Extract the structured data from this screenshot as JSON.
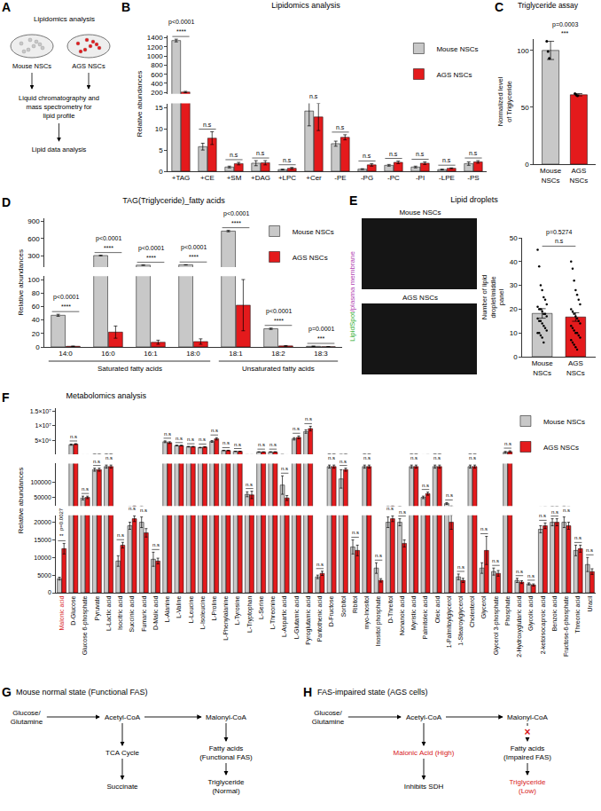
{
  "diagram_A": {
    "panel": "A",
    "title": "Lipidomics analysis",
    "samples": [
      "Mouse NSCs",
      "AGS NSCs"
    ],
    "sample_colors": [
      "#c8c8c8",
      "#e41a1c"
    ],
    "steps": [
      "Liquid chromatography and mass spectrometry for lipid profile",
      "Lipid data analysis"
    ]
  },
  "chart_data": [
    {
      "panel": "B",
      "type": "bar",
      "title": "Lipidomics analysis",
      "y_title": "Relative abundances",
      "legend": "top right",
      "categories": [
        "+TAG",
        "+CE",
        "+SM",
        "+DAG",
        "+LPC",
        "+Cer",
        "-PE",
        "-PG",
        "-PC",
        "-PI",
        "-LPE",
        "-PS"
      ],
      "series": [
        {
          "name": "Mouse NSCs",
          "color": "#c8c8c8",
          "values": [
            1340,
            5.8,
            1.0,
            1.9,
            0.4,
            14.2,
            6.5,
            0.5,
            1.4,
            1.0,
            0.4,
            1.8
          ],
          "errors": [
            30,
            0.8,
            0.2,
            0.6,
            0.1,
            3.5,
            0.6,
            0.1,
            0.2,
            0.2,
            0.1,
            0.4
          ]
        },
        {
          "name": "AGS NSCs",
          "color": "#e41a1c",
          "values": [
            210,
            7.8,
            1.8,
            2.0,
            0.7,
            12.8,
            8.0,
            1.5,
            2.1,
            1.9,
            0.7,
            2.2
          ],
          "errors": [
            15,
            1.5,
            0.3,
            0.5,
            0.2,
            3.2,
            0.6,
            0.3,
            0.3,
            0.3,
            0.1,
            0.3
          ]
        }
      ],
      "y_segments": [
        {
          "lim": [
            0,
            16
          ],
          "ticks": [
            0,
            5,
            10,
            15
          ]
        },
        {
          "lim": [
            170,
            1450
          ],
          "ticks": [
            200,
            400,
            600,
            800,
            1000,
            1200,
            1400
          ]
        }
      ],
      "significance": [
        "****",
        "n.s",
        "n.s",
        "n.s",
        "n.s",
        "n.s",
        "n.s",
        "n.s",
        "n.s",
        "n.s",
        "n.s",
        "n.s"
      ],
      "p_values": [
        "p<0.0001",
        null,
        null,
        null,
        null,
        null,
        null,
        null,
        null,
        null,
        null,
        null
      ]
    },
    {
      "panel": "C",
      "type": "bar",
      "title": "Triglyceride assay",
      "y_title": "Normalized level of Triglyceride",
      "categories": [
        "Mouse NSCs",
        "AGS NSCs"
      ],
      "values": [
        100,
        61
      ],
      "errors": [
        8,
        1
      ],
      "points": [
        [
          108,
          99,
          93
        ],
        [
          62,
          61,
          60
        ]
      ],
      "colors": [
        "#c8c8c8",
        "#e41a1c"
      ],
      "ylim": [
        0,
        110
      ],
      "yticks": [
        0,
        50,
        100
      ],
      "significance": "***",
      "p_value": "p=0.0003"
    },
    {
      "panel": "D",
      "type": "bar",
      "title": "TAG(Triglyceride)_fatty acids",
      "y_title": "Relative abundances",
      "legend": "top right",
      "categories": [
        "14:0",
        "16:0",
        "16:1",
        "18:0",
        "18:1",
        "18:2",
        "18:3"
      ],
      "series": [
        {
          "name": "Mouse NSCs",
          "color": "#c8c8c8",
          "values": [
            47,
            310,
            145,
            150,
            730,
            27,
            1.0
          ],
          "errors": [
            1.5,
            5,
            3,
            3,
            12,
            1,
            0.3
          ]
        },
        {
          "name": "AGS NSCs",
          "color": "#e41a1c",
          "values": [
            1.0,
            22,
            7,
            8,
            62,
            1.5,
            0.3
          ],
          "errors": [
            0.3,
            9,
            3,
            4,
            38,
            0.5,
            0.1
          ]
        }
      ],
      "y_segments": [
        {
          "lim": [
            0,
            105
          ],
          "ticks": [
            0,
            20,
            40,
            60,
            80,
            100
          ]
        },
        {
          "lim": [
            110,
            950
          ],
          "ticks": [
            300,
            600,
            900
          ]
        }
      ],
      "category_groups": [
        {
          "label": "Saturated fatty acids",
          "categories": [
            "14:0",
            "16:0",
            "16:1",
            "18:0"
          ]
        },
        {
          "label": "Unsaturated fatty acids",
          "categories": [
            "18:1",
            "18:2",
            "18:3"
          ]
        }
      ],
      "significance": [
        "****",
        "****",
        "****",
        "****",
        "****",
        "****",
        "***"
      ],
      "p_values": [
        "p<0.0001",
        "p<0.0001",
        "p<0.0001",
        "p<0.0001",
        "p<0.0001",
        "p<0.0001",
        "p=0.0001"
      ]
    },
    {
      "panel": "E",
      "type": "bar",
      "title": "Lipid droplets",
      "y_title": "Number of lipid droplet/middle panel",
      "image_labels": [
        "Mouse NSCs",
        "AGS NSCs"
      ],
      "stain_label": [
        {
          "text": "LipidSpot",
          "color": "#2fae2f"
        },
        {
          "text": "/plasma membrane",
          "color": "#b03cb0"
        }
      ],
      "categories": [
        "Mouse NSCs",
        "AGS NSCs"
      ],
      "values": [
        18.2,
        16.7
      ],
      "errors": [
        2,
        1.8
      ],
      "points": [
        [
          45,
          38,
          30,
          28,
          25,
          24,
          22,
          21,
          20,
          20,
          19,
          18,
          18,
          17,
          16,
          15,
          15,
          14,
          13,
          12,
          11,
          10,
          10,
          9,
          8,
          6
        ],
        [
          40,
          37,
          32,
          28,
          26,
          24,
          22,
          20,
          19,
          18,
          17,
          16,
          15,
          14,
          13,
          12,
          11,
          10,
          10,
          9,
          8,
          7,
          6,
          5,
          4,
          3
        ]
      ],
      "colors": [
        "#c8c8c8",
        "#e41a1c"
      ],
      "ylim": [
        0,
        50
      ],
      "yticks": [
        0,
        10,
        20,
        30,
        40,
        50
      ],
      "significance": "n.s",
      "p_value": "p=0.5274"
    },
    {
      "panel": "F",
      "type": "bar",
      "title": "Metabolomics analysis",
      "y_title": "Relative abundances",
      "legend": "top right",
      "highlight": {
        "categories": [
          "Malonic acid"
        ],
        "color": "#d7191c"
      },
      "categories": [
        "Malonic acid",
        "D-Glucose",
        "Glucose 6-phosphate",
        "Pyruvate",
        "L-Lactic acid",
        "Isocitric acid",
        "Succinic acid",
        "Fumaric acid",
        "D-Malic acid",
        "L-Alanine",
        "L-Valine",
        "L-Leucine",
        "L-Isoleucine",
        "L-Proline",
        "L-Phenylalanine",
        "L-Tyrosine",
        "L-Tryptophan",
        "L-Serine",
        "L-Threonine",
        "L-Aspartic acid",
        "L-Glutamic acid",
        "Pyroglutamic acid",
        "Pantothenic acid",
        "D-Fructose",
        "Sorbitol",
        "Ribitol",
        "myo-Inositol",
        "Inositol phosphate",
        "D-Threitol",
        "Nonanoic acid",
        "Myristic acid",
        "Palmitoleic acid",
        "Oleic acid",
        "1-Palmitoylglycerol",
        "1-Stearoylglycerol",
        "Cholesterol",
        "Glycerol",
        "Glycerol 3-phosphate",
        "Phosphate",
        "2-Hydroxyglutaric acid",
        "Glycolic acid",
        "2-ketoisocaproic acid",
        "Benzoic acid",
        "Fructose-6-phosphate",
        "Threonic acid",
        "Uracil"
      ],
      "series": [
        {
          "name": "Mouse NSCs",
          "color": "#c8c8c8",
          "values": [
            4000,
            3500000,
            48000,
            140000,
            150000,
            9000,
            19000,
            20000,
            9500,
            4500000,
            3200000,
            2800000,
            2500000,
            4600000,
            1500000,
            1200000,
            60000,
            1000000,
            1000000,
            90000,
            5500000,
            8000000,
            4500,
            150000,
            110000,
            13000,
            150000,
            7000,
            20000,
            20000,
            150000,
            50000,
            150000,
            30000,
            4500,
            150000,
            7000,
            6000,
            900000,
            3500,
            2500,
            18000,
            20000,
            20000,
            12000,
            8000
          ],
          "errors": [
            400,
            200000,
            6000,
            5000,
            5000,
            1500,
            1000,
            1500,
            2000,
            300000,
            100000,
            100000,
            100000,
            300000,
            80000,
            60000,
            8000,
            60000,
            60000,
            30000,
            400000,
            600000,
            500,
            5000,
            30000,
            2000,
            5000,
            1500,
            1500,
            1000,
            5000,
            4000,
            5000,
            3000,
            800,
            5000,
            1500,
            1000,
            300000,
            600,
            300,
            1000,
            1000,
            1500,
            1500,
            2000
          ]
        },
        {
          "name": "AGS NSCs",
          "color": "#e41a1c",
          "values": [
            12500,
            3700000,
            50000,
            140000,
            150000,
            13500,
            21000,
            17000,
            9000,
            4200000,
            3200000,
            2800000,
            2700000,
            5500000,
            1500000,
            1200000,
            58000,
            1000000,
            1000000,
            48000,
            6000000,
            9000000,
            5500,
            150000,
            140000,
            12000,
            150000,
            3500,
            21000,
            14000,
            150000,
            62000,
            150000,
            20000,
            3500,
            150000,
            12000,
            5500,
            1100000,
            3000,
            2200,
            19000,
            20000,
            19000,
            12500,
            6000
          ],
          "errors": [
            1500,
            150000,
            4000,
            5000,
            5000,
            800,
            800,
            1200,
            800,
            300000,
            100000,
            100000,
            100000,
            400000,
            80000,
            60000,
            12000,
            50000,
            60000,
            8000,
            500000,
            800000,
            600,
            5000,
            5000,
            1500,
            5000,
            500,
            800,
            1000,
            5000,
            5000,
            5000,
            2000,
            600,
            5000,
            4000,
            800,
            300000,
            400,
            300,
            800,
            1000,
            1000,
            1000,
            800
          ]
        }
      ],
      "y_segments": [
        {
          "lim": [
            0,
            22000
          ],
          "ticks": [
            0,
            5000,
            10000,
            15000,
            20000
          ]
        },
        {
          "lim": [
            22000,
            160000
          ],
          "ticks": [
            50000,
            100000
          ]
        },
        {
          "lim": [
            200000,
            16000000
          ],
          "ticks": [
            {
              "value": 5000000,
              "label": "5×10⁶"
            },
            {
              "value": 10000000,
              "label": "1×10⁷"
            },
            {
              "value": 15000000,
              "label": "1.5×10⁷"
            }
          ]
        }
      ],
      "significance": [
        "**",
        "n.s",
        "n.s",
        "n.s",
        "n.s",
        "n.s",
        "n.s",
        "n.s",
        "n.s",
        "n.s",
        "n.s",
        "n.s",
        "n.s",
        "n.s",
        "n.s",
        "n.s",
        "n.s",
        "n.s",
        "n.s",
        "n.s",
        "n.s",
        "n.s",
        "n.s",
        "n.s",
        "n.s",
        "n.s",
        "n.s",
        "n.s",
        "n.s",
        "n.s",
        "n.s",
        "n.s",
        "n.s",
        "n.s",
        "n.s",
        "n.s",
        "n.s",
        "n.s",
        "n.s",
        "n.s",
        "n.s",
        "n.s",
        "n.s",
        "n.s",
        "n.s",
        "n.s"
      ],
      "p_values": [
        "p=0.0027",
        null,
        null,
        null,
        null,
        null,
        null,
        null,
        null,
        null,
        null,
        null,
        null,
        null,
        null,
        null,
        null,
        null,
        null,
        null,
        null,
        null,
        null,
        null,
        null,
        null,
        null,
        null,
        null,
        null,
        null,
        null,
        null,
        null,
        null,
        null,
        null,
        null,
        null,
        null,
        null,
        null,
        null,
        null,
        null,
        null
      ]
    }
  ],
  "diagram_G": {
    "panel": "G",
    "title": "Mouse normal state (Functional FAS)",
    "nodes": [
      {
        "lines": [
          "Glucose/",
          "Glutamine"
        ]
      },
      {
        "lines": [
          "Acetyl-CoA"
        ]
      },
      {
        "lines": [
          "Malonyl-CoA"
        ]
      },
      {
        "lines": [
          "TCA Cycle"
        ]
      },
      {
        "lines": [
          "Succinate"
        ]
      },
      {
        "lines": [
          "Fatty acids",
          "(Functional FAS)"
        ]
      },
      {
        "lines": [
          "Triglyceride",
          "(Normal)"
        ]
      }
    ],
    "edges": [
      {
        "from": 0,
        "to": 1
      },
      {
        "from": 1,
        "to": 2
      },
      {
        "from": 1,
        "to": 3
      },
      {
        "from": 3,
        "to": 4
      },
      {
        "from": 2,
        "to": 5
      },
      {
        "from": 5,
        "to": 6
      }
    ]
  },
  "diagram_H": {
    "panel": "H",
    "title": "FAS-impaired state (AGS cells)",
    "nodes": [
      {
        "lines": [
          "Glucose/",
          "Glutamine"
        ]
      },
      {
        "lines": [
          "Acetyl-CoA"
        ]
      },
      {
        "lines": [
          "Malonyl-CoA"
        ]
      },
      {
        "lines": [
          "Malonic Acid (High)"
        ],
        "color": "#d7191c"
      },
      {
        "lines": [
          "Inhibits SDH"
        ]
      },
      {
        "lines": [
          "Fatty acids",
          "(Impaired FAS)"
        ]
      },
      {
        "lines": [
          "Triglyceride",
          "(Low)"
        ],
        "color": "#d7191c"
      }
    ],
    "edges": [
      {
        "from": 0,
        "to": 1
      },
      {
        "from": 1,
        "to": 2
      },
      {
        "from": 1,
        "to": 3
      },
      {
        "from": 3,
        "to": 4
      },
      {
        "from": 2,
        "to": 5,
        "line_style": "dashed",
        "mark": "×"
      },
      {
        "from": 5,
        "to": 6
      }
    ]
  }
}
